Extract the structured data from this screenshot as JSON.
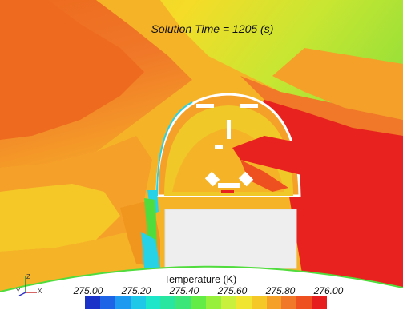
{
  "solution_time_label": "Solution Time = 1205 (s)",
  "legend": {
    "title": "Temperature (K)",
    "ticks": [
      "275.00",
      "275.20",
      "275.40",
      "275.60",
      "275.80",
      "276.00"
    ],
    "colors": [
      "#1a32c8",
      "#1e64e6",
      "#1e9bf0",
      "#1ec8e6",
      "#1ee6c8",
      "#28e6a0",
      "#3ce678",
      "#64ec46",
      "#96f03c",
      "#c8f03c",
      "#f0e632",
      "#f5c828",
      "#f5a028",
      "#f07828",
      "#ee5020",
      "#e61e1e"
    ]
  },
  "axis_triad": {
    "labels": [
      "Z",
      "Y",
      "X"
    ]
  },
  "field_colors": {
    "sky_top": "#a0e63c",
    "warm_band": "#f0961e",
    "dark_orange": "#ee6a1e",
    "hot": "#e8221e",
    "mid_yellow": "#f5c828",
    "ground": "#f0781e",
    "cyan": "#28d2e6",
    "green": "#50dc3c"
  }
}
